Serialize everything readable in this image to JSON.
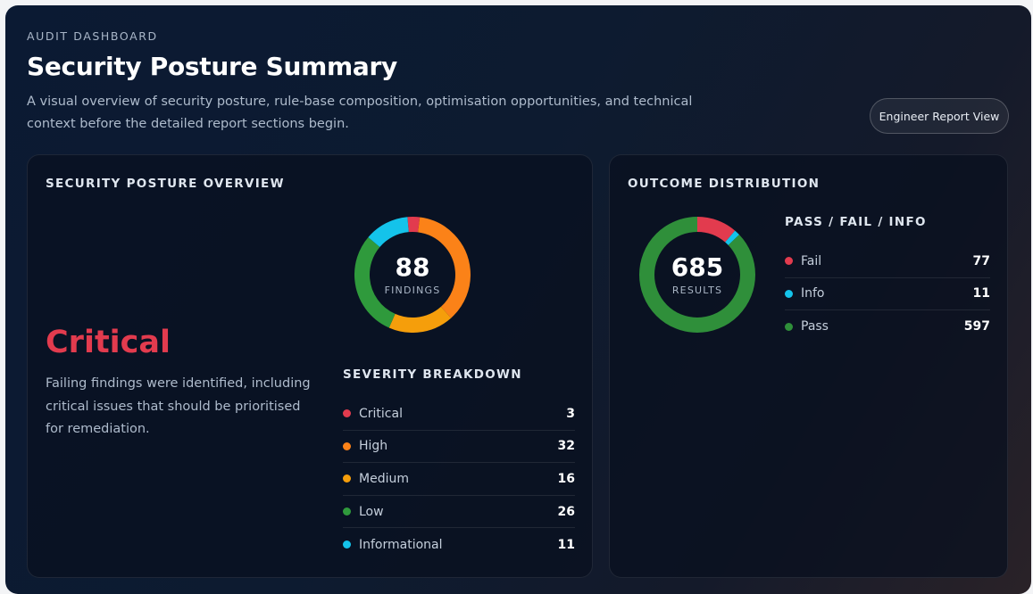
{
  "header": {
    "eyebrow": "AUDIT DASHBOARD",
    "title": "Security Posture Summary",
    "description": "A visual overview of security posture, rule-base composition, optimisation opportunities, and technical context before the detailed report sections begin.",
    "report_button_label": "Engineer Report View"
  },
  "posture": {
    "title": "SECURITY POSTURE OVERVIEW",
    "rating": "Critical",
    "rating_color": "#e23b4e",
    "rating_description": "Failing findings were identified, including critical issues that should be prioritised for remediation.",
    "donut_total": "88",
    "donut_label": "FINDINGS",
    "breakdown_title": "SEVERITY BREAKDOWN"
  },
  "outcome": {
    "title": "OUTCOME DISTRIBUTION",
    "donut_total": "685",
    "donut_label": "RESULTS",
    "list_title": "PASS / FAIL / INFO"
  },
  "chart_data": [
    {
      "type": "pie",
      "categories": [
        "Critical",
        "High",
        "Medium",
        "Low",
        "Informational"
      ],
      "values": [
        3,
        32,
        16,
        26,
        11
      ],
      "colors": [
        "#e23b4e",
        "#fb8218",
        "#f59e0b",
        "#2f9a3c",
        "#14c3ea"
      ],
      "total": 88
    },
    {
      "type": "pie",
      "categories": [
        "Fail",
        "Info",
        "Pass"
      ],
      "values": [
        77,
        11,
        597
      ],
      "colors": [
        "#e23b4e",
        "#14c3ea",
        "#2f8f3a"
      ],
      "total": 685
    }
  ]
}
